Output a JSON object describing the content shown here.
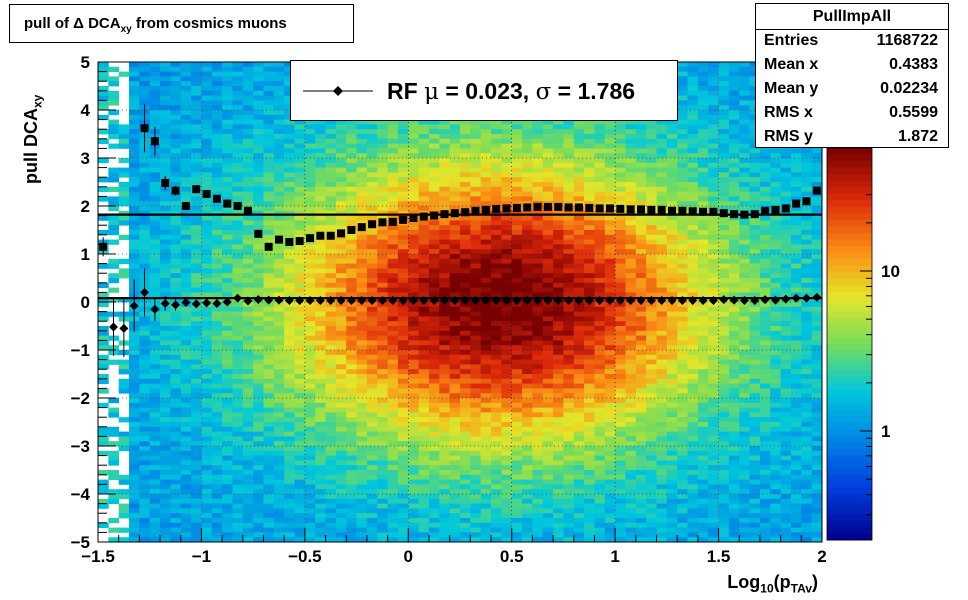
{
  "title": {
    "main": "pull of Δ DCA",
    "sub": "xy",
    "rest": " from cosmics muons"
  },
  "stats": {
    "name": "PullImpAll",
    "rows": [
      {
        "key": "Entries",
        "value": "1168722"
      },
      {
        "key": "Mean x",
        "value": "0.4383"
      },
      {
        "key": "Mean y",
        "value": "0.02234"
      },
      {
        "key": "RMS x",
        "value": "0.5599"
      },
      {
        "key": "RMS y",
        "value": "1.872"
      }
    ]
  },
  "legend": {
    "label_pre": "RF ",
    "mu_sym": "μ",
    "mu_text": " =  0.023, ",
    "sigma_sym": "σ",
    "sigma_text": " =   1.786"
  },
  "axes": {
    "ylabel_main": "pull DCA",
    "ylabel_sub": "xy",
    "xlabel_main": "Log",
    "xlabel_sub1": "10",
    "xlabel_mid": "(p",
    "xlabel_sub2": "TAv",
    "xlabel_end": ")"
  },
  "chart_data": {
    "type": "heatmap",
    "xlim": [
      -1.5,
      2
    ],
    "ylim": [
      -5,
      5
    ],
    "xticks": [
      -1.5,
      -1,
      -0.5,
      0,
      0.5,
      1,
      1.5,
      2
    ],
    "xtick_labels": [
      "−1.5",
      "−1",
      "−0.5",
      "0",
      "0.5",
      "1",
      "1.5",
      "2"
    ],
    "yticks": [
      -5,
      -4,
      -3,
      -2,
      -1,
      0,
      1,
      2,
      3,
      4,
      5
    ],
    "ytick_labels": [
      "−5",
      "−4",
      "−3",
      "−2",
      "−1",
      "0",
      "1",
      "2",
      "3",
      "4",
      "5"
    ],
    "grid": true,
    "colorbar": {
      "scale": "log",
      "tick_labels": [
        "1",
        "10"
      ]
    },
    "density": {
      "center_x": 0.44,
      "center_y": 0.0,
      "rms_x": 0.56,
      "rms_y": 1.87
    },
    "mean_series": {
      "x": [
        -1.475,
        -1.425,
        -1.375,
        -1.325,
        -1.275,
        -1.225,
        -1.175,
        -1.125,
        -1.075,
        -1.025,
        -0.975,
        -0.925,
        -0.875,
        -0.825,
        -0.775,
        -0.725,
        -0.675,
        -0.625,
        -0.575,
        -0.525,
        -0.475,
        -0.425,
        -0.375,
        -0.325,
        -0.275,
        -0.225,
        -0.175,
        -0.125,
        -0.075,
        -0.025,
        0.025,
        0.075,
        0.125,
        0.175,
        0.225,
        0.275,
        0.325,
        0.375,
        0.425,
        0.475,
        0.525,
        0.575,
        0.625,
        0.675,
        0.725,
        0.775,
        0.825,
        0.875,
        0.925,
        0.975,
        1.025,
        1.075,
        1.125,
        1.175,
        1.225,
        1.275,
        1.325,
        1.375,
        1.425,
        1.475,
        1.525,
        1.575,
        1.625,
        1.675,
        1.725,
        1.775,
        1.825,
        1.875,
        1.925,
        1.975
      ],
      "y": [
        null,
        -0.52,
        -0.55,
        -0.08,
        0.2,
        -0.15,
        -0.03,
        -0.06,
        -0.01,
        -0.04,
        -0.02,
        -0.03,
        0.0,
        0.08,
        0.02,
        0.05,
        0.04,
        0.04,
        0.03,
        0.03,
        0.03,
        0.03,
        0.03,
        0.03,
        0.03,
        0.03,
        0.03,
        0.03,
        0.03,
        0.03,
        0.03,
        0.03,
        0.03,
        0.03,
        0.03,
        0.03,
        0.03,
        0.03,
        0.03,
        0.03,
        0.03,
        0.03,
        0.03,
        0.03,
        0.03,
        0.03,
        0.03,
        0.03,
        0.03,
        0.03,
        0.03,
        0.03,
        0.03,
        0.03,
        0.03,
        0.03,
        0.03,
        0.03,
        0.03,
        0.03,
        0.05,
        0.04,
        0.03,
        0.03,
        0.05,
        0.04,
        0.06,
        0.08,
        0.08,
        0.1
      ],
      "y_err": [
        null,
        0.6,
        0.6,
        0.55,
        0.5,
        0.25,
        0.15,
        0.12,
        0.08,
        0.06,
        0.05,
        0.05,
        0.04,
        0.03,
        0.03,
        0.02,
        0.02,
        0.02,
        0.01,
        0.01,
        0.01,
        0.01,
        0.01,
        0.01,
        0.01,
        0.01,
        0.01,
        0.01,
        0.01,
        0.01,
        0.01,
        0.01,
        0.01,
        0.01,
        0.01,
        0.01,
        0.01,
        0.01,
        0.01,
        0.01,
        0.01,
        0.01,
        0.01,
        0.01,
        0.01,
        0.01,
        0.01,
        0.01,
        0.01,
        0.01,
        0.01,
        0.01,
        0.01,
        0.01,
        0.01,
        0.01,
        0.01,
        0.01,
        0.01,
        0.01,
        0.01,
        0.01,
        0.01,
        0.02,
        0.02,
        0.02,
        0.03,
        0.04,
        0.05,
        0.07
      ]
    },
    "rms_series": {
      "x": [
        -1.475,
        -1.425,
        -1.375,
        -1.325,
        -1.275,
        -1.225,
        -1.175,
        -1.125,
        -1.075,
        -1.025,
        -0.975,
        -0.925,
        -0.875,
        -0.825,
        -0.775,
        -0.725,
        -0.675,
        -0.625,
        -0.575,
        -0.525,
        -0.475,
        -0.425,
        -0.375,
        -0.325,
        -0.275,
        -0.225,
        -0.175,
        -0.125,
        -0.075,
        -0.025,
        0.025,
        0.075,
        0.125,
        0.175,
        0.225,
        0.275,
        0.325,
        0.375,
        0.425,
        0.475,
        0.525,
        0.575,
        0.625,
        0.675,
        0.725,
        0.775,
        0.825,
        0.875,
        0.925,
        0.975,
        1.025,
        1.075,
        1.125,
        1.175,
        1.225,
        1.275,
        1.325,
        1.375,
        1.425,
        1.475,
        1.525,
        1.575,
        1.625,
        1.675,
        1.725,
        1.775,
        1.825,
        1.875,
        1.925,
        1.975
      ],
      "y": [
        1.15,
        null,
        null,
        null,
        3.62,
        3.35,
        2.48,
        2.32,
        2.0,
        2.35,
        2.25,
        2.15,
        2.05,
        2.0,
        1.9,
        1.42,
        1.15,
        1.3,
        1.25,
        1.27,
        1.33,
        1.38,
        1.38,
        1.43,
        1.5,
        1.56,
        1.62,
        1.66,
        1.67,
        1.71,
        1.75,
        1.78,
        1.8,
        1.83,
        1.85,
        1.87,
        1.9,
        1.92,
        1.94,
        1.95,
        1.96,
        1.97,
        1.98,
        1.98,
        1.98,
        1.97,
        1.97,
        1.96,
        1.95,
        1.95,
        1.94,
        1.93,
        1.93,
        1.92,
        1.92,
        1.9,
        1.9,
        1.89,
        1.88,
        1.88,
        1.85,
        1.83,
        1.82,
        1.83,
        1.9,
        1.92,
        1.95,
        2.05,
        2.1,
        2.32
      ],
      "y_err": [
        0.2,
        null,
        null,
        null,
        0.5,
        0.3,
        0.15,
        0.1,
        0.08,
        0.06,
        0.05,
        0.04,
        0.03,
        0.03,
        0.02,
        0.02,
        0.02,
        0.02,
        0.01,
        0.01,
        0.01,
        0.01,
        0.01,
        0.01,
        0.01,
        0.01,
        0.01,
        0.01,
        0.01,
        0.01,
        0.01,
        0.01,
        0.01,
        0.01,
        0.01,
        0.01,
        0.01,
        0.01,
        0.01,
        0.01,
        0.01,
        0.01,
        0.01,
        0.01,
        0.01,
        0.01,
        0.01,
        0.01,
        0.01,
        0.01,
        0.01,
        0.01,
        0.01,
        0.01,
        0.01,
        0.01,
        0.01,
        0.01,
        0.01,
        0.01,
        0.01,
        0.01,
        0.02,
        0.02,
        0.02,
        0.03,
        0.03,
        0.04,
        0.05,
        0.07
      ]
    },
    "fit_lines": [
      {
        "y": 0.08,
        "from_x": -1.5,
        "to_x": 2
      },
      {
        "y": 1.82,
        "from_x": -1.5,
        "to_x": 2
      }
    ]
  }
}
